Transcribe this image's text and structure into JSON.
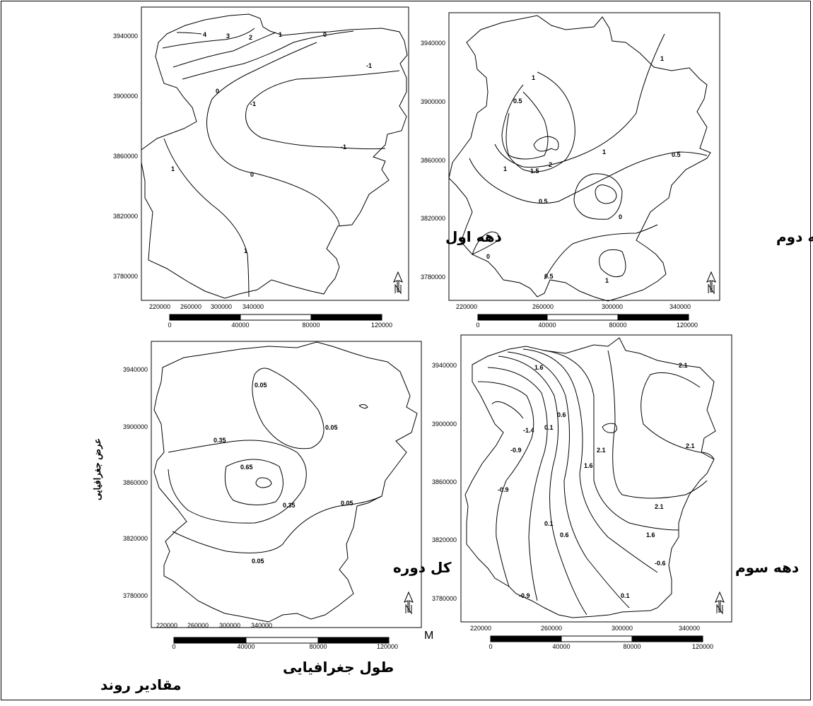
{
  "figure": {
    "xlabel": "طول جغرافیایی",
    "ylabel": "عرض جغرافیایی",
    "caption": "مقادیر روند",
    "unit": "M"
  },
  "axes": {
    "x_ticks": [
      "220000",
      "260000",
      "300000",
      "340000"
    ],
    "y_ticks": [
      "3940000",
      "3900000",
      "3860000",
      "3820000",
      "3780000"
    ]
  },
  "scale_bar": {
    "labels": [
      "0",
      "40000",
      "80000",
      "120000"
    ]
  },
  "panels": [
    {
      "title": "دهه اول",
      "contour_labels": [
        "4",
        "3",
        "2",
        "1",
        "0",
        "-1",
        "-1",
        "0",
        "-1",
        "1",
        "0",
        "1"
      ]
    },
    {
      "title": "دهه دوم",
      "contour_labels": [
        "1",
        "1",
        "0.5",
        "2",
        "1.5",
        "1",
        "1",
        "0.5",
        "0.5",
        "0",
        "0",
        "0.5",
        "1"
      ]
    },
    {
      "title": "کل دوره",
      "contour_labels": [
        "0.05",
        "0.05",
        "0.35",
        "0.65",
        "0.35",
        "0.05",
        "0.05"
      ]
    },
    {
      "title": "دهه سوم",
      "contour_labels": [
        "1.6",
        "2.1",
        "0.6",
        "0.1",
        "-1.4",
        "-0.9",
        "2.1",
        "1.6",
        "2.1",
        "2.1",
        "-0.9",
        "0.1",
        "0.6",
        "1.6",
        "-0.6",
        "-0.9",
        "0.1"
      ]
    }
  ]
}
